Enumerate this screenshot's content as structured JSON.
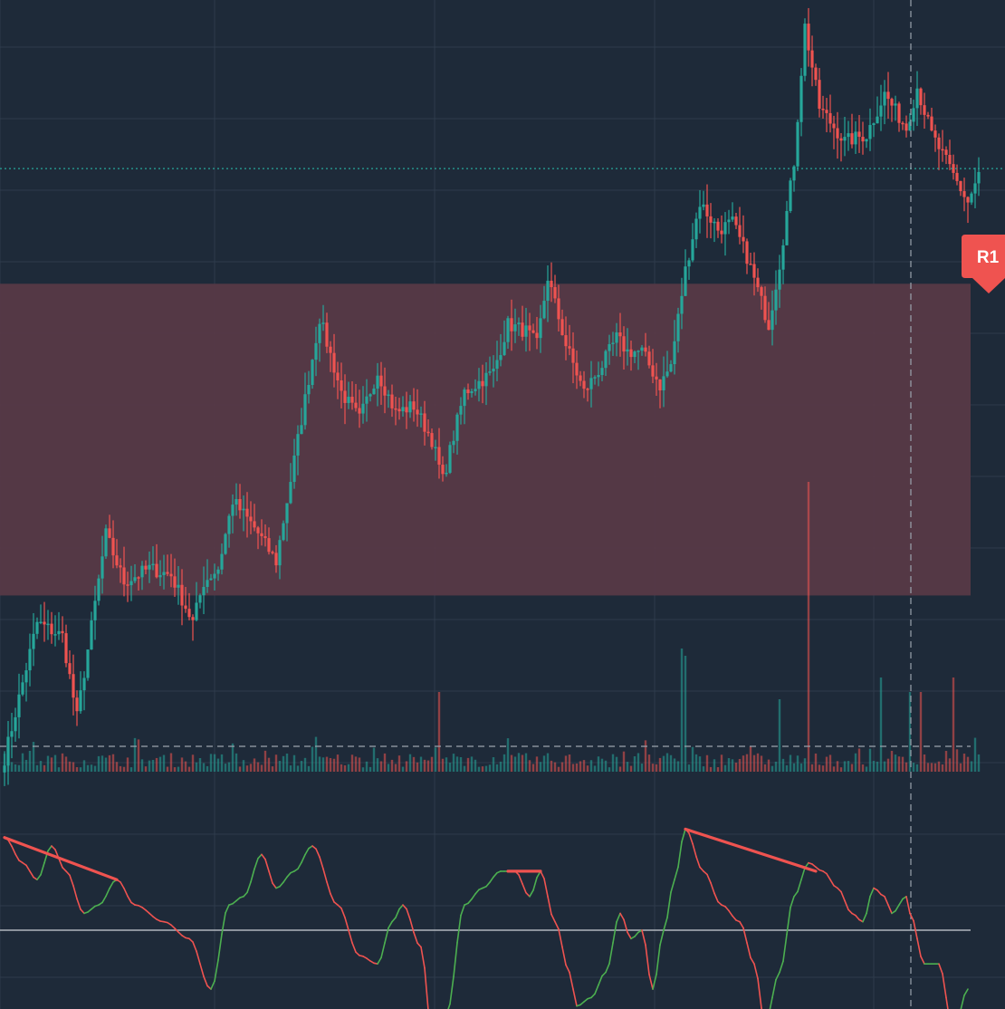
{
  "colors": {
    "background": "#1e2a39",
    "grid": "#2e3b4c",
    "bull": "#26a69a",
    "bear": "#ef5350",
    "zone": "#5a3a47",
    "price_line": "#26a69a",
    "crosshair": "#9aa3ad",
    "oscillator_bull": "#4caf50",
    "oscillator_bear": "#ef5350",
    "oscillator_baseline": "#b0b6bd",
    "badge": "#ef5350",
    "badge_text": "#ffffff"
  },
  "zone": {
    "label": "R1",
    "top_price": 72,
    "bottom_price": 26
  },
  "chart_data": [
    {
      "type": "candlestick",
      "title": "",
      "xlabel": "",
      "ylabel": "",
      "ylim": [
        0,
        112
      ],
      "grid": true,
      "current_price": 89,
      "close_path": [
        [
          0,
          2
        ],
        [
          9,
          22
        ],
        [
          16,
          20
        ],
        [
          20,
          8
        ],
        [
          23,
          18
        ],
        [
          28,
          35
        ],
        [
          33,
          28
        ],
        [
          40,
          30
        ],
        [
          46,
          29
        ],
        [
          52,
          22
        ],
        [
          55,
          28
        ],
        [
          59,
          30
        ],
        [
          63,
          40
        ],
        [
          69,
          36
        ],
        [
          75,
          31
        ],
        [
          80,
          46
        ],
        [
          87,
          67
        ],
        [
          93,
          56
        ],
        [
          98,
          52
        ],
        [
          103,
          59
        ],
        [
          108,
          53
        ],
        [
          113,
          54
        ],
        [
          118,
          49
        ],
        [
          121,
          43
        ],
        [
          127,
          56
        ],
        [
          135,
          59
        ],
        [
          139,
          66
        ],
        [
          144,
          65
        ],
        [
          147,
          63
        ],
        [
          150,
          73
        ],
        [
          155,
          63
        ],
        [
          160,
          56
        ],
        [
          165,
          60
        ],
        [
          169,
          64
        ],
        [
          172,
          62
        ],
        [
          176,
          62
        ],
        [
          181,
          57
        ],
        [
          184,
          60
        ],
        [
          188,
          74
        ],
        [
          192,
          84
        ],
        [
          197,
          80
        ],
        [
          201,
          81
        ],
        [
          205,
          76
        ],
        [
          211,
          66
        ],
        [
          214,
          75
        ],
        [
          218,
          90
        ],
        [
          221,
          110
        ],
        [
          225,
          98
        ],
        [
          232,
          93
        ],
        [
          238,
          94
        ],
        [
          243,
          100
        ],
        [
          249,
          95
        ],
        [
          252,
          101
        ],
        [
          256,
          94
        ],
        [
          261,
          89
        ],
        [
          266,
          84
        ],
        [
          269,
          88
        ]
      ],
      "volume_spike_bars": [
        [
          222,
          40
        ],
        [
          188,
          16
        ],
        [
          187,
          17
        ],
        [
          242,
          13
        ],
        [
          262,
          13
        ],
        [
          253,
          11
        ],
        [
          250,
          11
        ],
        [
          120,
          11
        ],
        [
          214,
          10
        ]
      ]
    },
    {
      "type": "line",
      "title": "",
      "baseline": 0,
      "ylim": [
        -13,
        14
      ],
      "points": [
        [
          0,
          11
        ],
        [
          5,
          8
        ],
        [
          9,
          6
        ],
        [
          13,
          10
        ],
        [
          17,
          7
        ],
        [
          22,
          2
        ],
        [
          26,
          3
        ],
        [
          31,
          6
        ],
        [
          36,
          3
        ],
        [
          44,
          1
        ],
        [
          51,
          -1
        ],
        [
          57,
          -7
        ],
        [
          62,
          3
        ],
        [
          66,
          4
        ],
        [
          71,
          9
        ],
        [
          75,
          5
        ],
        [
          80,
          7
        ],
        [
          85,
          10
        ],
        [
          92,
          3
        ],
        [
          98,
          -3
        ],
        [
          103,
          -4
        ],
        [
          107,
          1
        ],
        [
          110,
          3
        ],
        [
          115,
          -2
        ],
        [
          118,
          -12
        ],
        [
          122,
          -10
        ],
        [
          127,
          3
        ],
        [
          132,
          5
        ],
        [
          137,
          7
        ],
        [
          141,
          7
        ],
        [
          145,
          4
        ],
        [
          148,
          7
        ],
        [
          152,
          1
        ],
        [
          156,
          -5
        ],
        [
          158,
          -9
        ],
        [
          162,
          -8
        ],
        [
          166,
          -5
        ],
        [
          170,
          2
        ],
        [
          173,
          -1
        ],
        [
          176,
          0
        ],
        [
          179,
          -7
        ],
        [
          182,
          0
        ],
        [
          185,
          6
        ],
        [
          188,
          12
        ],
        [
          193,
          7
        ],
        [
          198,
          3
        ],
        [
          203,
          1
        ],
        [
          207,
          -4
        ],
        [
          210,
          -11
        ],
        [
          214,
          -5
        ],
        [
          218,
          4
        ],
        [
          222,
          8
        ],
        [
          226,
          7
        ],
        [
          230,
          5
        ],
        [
          234,
          2
        ],
        [
          237,
          1
        ],
        [
          240,
          5
        ],
        [
          243,
          4
        ],
        [
          245,
          2
        ],
        [
          249,
          4
        ],
        [
          250,
          2
        ],
        [
          254,
          -4
        ],
        [
          258,
          -4
        ],
        [
          262,
          -12
        ],
        [
          266,
          -7
        ]
      ],
      "divergence_lines": [
        [
          [
            0,
            11
          ],
          [
            31,
            6
          ]
        ],
        [
          [
            139,
            7
          ],
          [
            148,
            7
          ]
        ],
        [
          [
            188,
            12
          ],
          [
            224,
            7
          ]
        ]
      ]
    }
  ]
}
